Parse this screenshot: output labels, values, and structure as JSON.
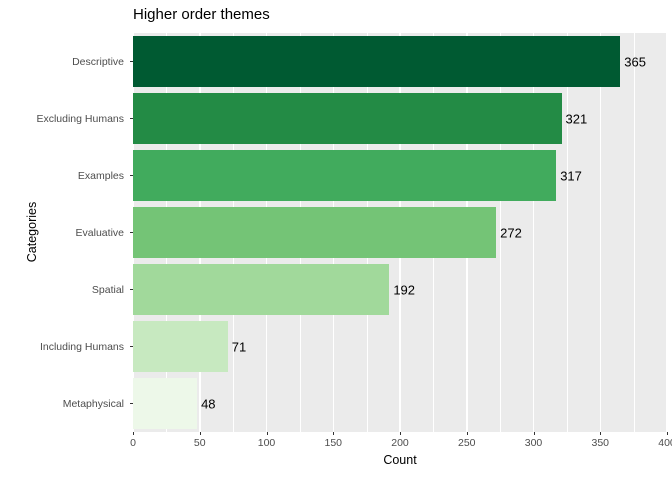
{
  "chart_data": {
    "type": "bar",
    "orientation": "horizontal",
    "title": "Higher order themes",
    "xlabel": "Count",
    "ylabel": "Categories",
    "categories": [
      "Descriptive",
      "Excluding Humans",
      "Examples",
      "Evaluative",
      "Spatial",
      "Including Humans",
      "Metaphysical"
    ],
    "values": [
      365,
      321,
      317,
      272,
      192,
      71,
      48
    ],
    "bar_colors": [
      "#005A32",
      "#238B45",
      "#41AB5D",
      "#74C476",
      "#A1D99B",
      "#C7E9C0",
      "#EDF8E9"
    ],
    "xlim": [
      0,
      400
    ],
    "x_major_ticks": [
      0,
      50,
      100,
      150,
      200,
      250,
      300,
      350,
      400
    ],
    "x_minor_ticks": [
      25,
      75,
      125,
      175,
      225,
      275,
      325,
      375
    ],
    "grid": true,
    "legend": "none",
    "panel_bg": "#EBEBEB",
    "grid_color": "#FFFFFF",
    "tick_label_color": "#4D4D4D",
    "text_color": "#000000",
    "bar_value_labels_shown": true
  }
}
